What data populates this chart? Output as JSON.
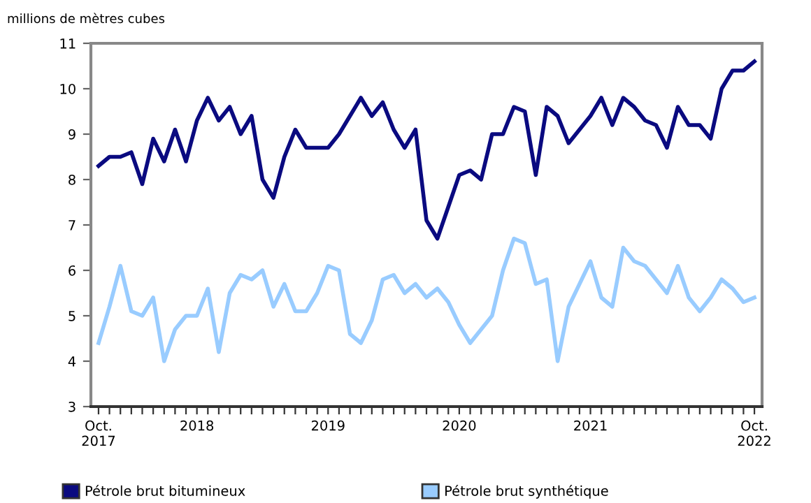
{
  "chart_data": {
    "type": "line",
    "ylabel": "millions de mètres cubes",
    "categories": [
      "Oct.\n2017",
      null,
      null,
      null,
      null,
      null,
      null,
      null,
      null,
      "2018",
      null,
      null,
      null,
      null,
      null,
      null,
      null,
      null,
      null,
      null,
      null,
      "2019",
      null,
      null,
      null,
      null,
      null,
      null,
      null,
      null,
      null,
      null,
      null,
      "2020",
      null,
      null,
      null,
      null,
      null,
      null,
      null,
      null,
      null,
      null,
      null,
      "2021",
      null,
      null,
      null,
      null,
      null,
      null,
      null,
      null,
      null,
      null,
      null,
      null,
      null,
      null,
      "Oct.\n2022"
    ],
    "series": [
      {
        "name": "Pétrole brut bitumineux",
        "color": "#0a0a80",
        "values": [
          8.3,
          8.5,
          8.5,
          8.6,
          7.9,
          8.9,
          8.4,
          9.1,
          8.4,
          9.3,
          9.8,
          9.3,
          9.6,
          9.0,
          9.4,
          8.0,
          7.6,
          8.5,
          9.1,
          8.7,
          8.7,
          8.7,
          9.0,
          9.4,
          9.8,
          9.4,
          9.7,
          9.1,
          8.7,
          9.1,
          7.1,
          6.7,
          7.4,
          8.1,
          8.2,
          8.0,
          9.0,
          9.0,
          9.6,
          9.5,
          8.1,
          9.6,
          9.4,
          8.8,
          9.1,
          9.4,
          9.8,
          9.2,
          9.8,
          9.6,
          9.3,
          9.2,
          8.7,
          9.6,
          9.2,
          9.2,
          8.9,
          10.0,
          10.4,
          10.4,
          10.6
        ]
      },
      {
        "name": "Pétrole brut synthétique",
        "color": "#99ccff",
        "values": [
          4.4,
          5.2,
          6.1,
          5.1,
          5.0,
          5.4,
          4.0,
          4.7,
          5.0,
          5.0,
          5.6,
          4.2,
          5.5,
          5.9,
          5.8,
          6.0,
          5.2,
          5.7,
          5.1,
          5.1,
          5.5,
          6.1,
          6.0,
          4.6,
          4.4,
          4.9,
          5.8,
          5.9,
          5.5,
          5.7,
          5.4,
          5.6,
          5.3,
          4.8,
          4.4,
          4.7,
          5.0,
          6.0,
          6.7,
          6.6,
          5.7,
          5.8,
          4.0,
          5.2,
          5.7,
          6.2,
          5.4,
          5.2,
          6.5,
          6.2,
          6.1,
          5.8,
          5.5,
          6.1,
          5.4,
          5.1,
          5.4,
          5.8,
          5.6,
          5.3,
          5.4
        ]
      }
    ],
    "ylim": [
      3,
      11
    ],
    "yticks": [
      3,
      4,
      5,
      6,
      7,
      8,
      9,
      10,
      11
    ],
    "grid": false,
    "legend": "bottom",
    "marker": "none",
    "line_style": "solid"
  }
}
